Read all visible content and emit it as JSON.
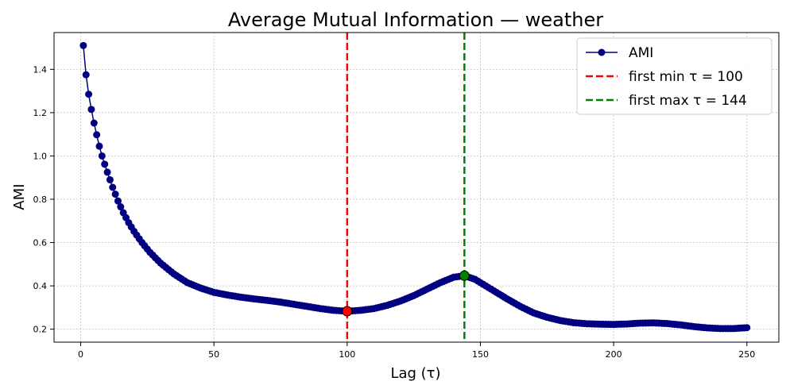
{
  "chart_data": {
    "type": "line",
    "title": "Average Mutual Information — weather",
    "xlabel": "Lag (τ)",
    "ylabel": "AMI",
    "xlim": [
      -10,
      262
    ],
    "ylim": [
      0.14,
      1.57
    ],
    "xticks": [
      0,
      50,
      100,
      150,
      200,
      250
    ],
    "yticks": [
      0.2,
      0.4,
      0.6,
      0.8,
      1.0,
      1.2,
      1.4
    ],
    "ytick_labels": [
      "0.2",
      "0.4",
      "0.6",
      "0.8",
      "1.0",
      "1.2",
      "1.4"
    ],
    "grid": true,
    "legend_position": "top-right",
    "series": [
      {
        "name": "AMI",
        "color": "#000080",
        "marker": "circle",
        "anchors": [
          [
            1,
            1.51
          ],
          [
            2,
            1.375
          ],
          [
            3,
            1.285
          ],
          [
            4,
            1.215
          ],
          [
            5,
            1.152
          ],
          [
            6,
            1.098
          ],
          [
            7,
            1.045
          ],
          [
            8,
            1.0
          ],
          [
            9,
            0.962
          ],
          [
            10,
            0.925
          ],
          [
            12,
            0.855
          ],
          [
            14,
            0.792
          ],
          [
            16,
            0.738
          ],
          [
            18,
            0.692
          ],
          [
            20,
            0.652
          ],
          [
            23,
            0.6
          ],
          [
            26,
            0.555
          ],
          [
            30,
            0.505
          ],
          [
            35,
            0.455
          ],
          [
            40,
            0.415
          ],
          [
            45,
            0.39
          ],
          [
            50,
            0.37
          ],
          [
            55,
            0.358
          ],
          [
            60,
            0.348
          ],
          [
            65,
            0.34
          ],
          [
            70,
            0.333
          ],
          [
            75,
            0.325
          ],
          [
            80,
            0.315
          ],
          [
            85,
            0.305
          ],
          [
            90,
            0.295
          ],
          [
            95,
            0.287
          ],
          [
            100,
            0.283
          ],
          [
            105,
            0.287
          ],
          [
            110,
            0.295
          ],
          [
            115,
            0.31
          ],
          [
            120,
            0.33
          ],
          [
            125,
            0.355
          ],
          [
            130,
            0.385
          ],
          [
            135,
            0.415
          ],
          [
            140,
            0.44
          ],
          [
            144,
            0.447
          ],
          [
            148,
            0.43
          ],
          [
            152,
            0.4
          ],
          [
            156,
            0.37
          ],
          [
            160,
            0.34
          ],
          [
            165,
            0.305
          ],
          [
            170,
            0.275
          ],
          [
            175,
            0.255
          ],
          [
            180,
            0.24
          ],
          [
            185,
            0.23
          ],
          [
            190,
            0.225
          ],
          [
            195,
            0.223
          ],
          [
            200,
            0.222
          ],
          [
            205,
            0.224
          ],
          [
            210,
            0.228
          ],
          [
            215,
            0.229
          ],
          [
            220,
            0.226
          ],
          [
            225,
            0.22
          ],
          [
            230,
            0.212
          ],
          [
            235,
            0.206
          ],
          [
            240,
            0.203
          ],
          [
            245,
            0.203
          ],
          [
            250,
            0.207
          ]
        ]
      }
    ],
    "vlines": [
      {
        "name": "first min τ = 100",
        "x": 100,
        "color": "#ff0000",
        "point_y": 0.283
      },
      {
        "name": "first max τ = 144",
        "x": 144,
        "color": "#008000",
        "point_y": 0.447
      }
    ],
    "x_range_points": [
      1,
      250
    ]
  }
}
